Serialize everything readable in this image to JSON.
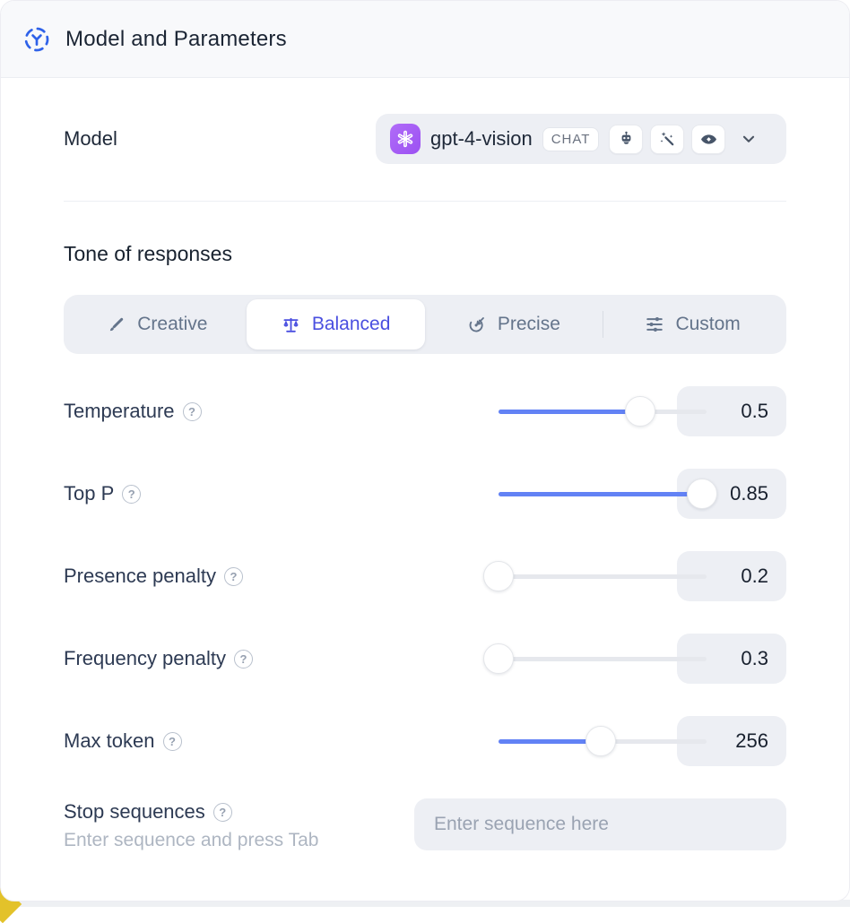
{
  "header": {
    "title": "Model and Parameters"
  },
  "model": {
    "label": "Model",
    "name": "gpt-4-vision",
    "type_badge": "CHAT",
    "capability_icons": [
      "robot-icon",
      "magic-wand-icon",
      "vision-eye-icon"
    ]
  },
  "tone": {
    "heading": "Tone of responses",
    "tabs": [
      {
        "label": "Creative",
        "icon": "paintbrush-icon",
        "active": false
      },
      {
        "label": "Balanced",
        "icon": "balance-scale-icon",
        "active": true
      },
      {
        "label": "Precise",
        "icon": "target-arrow-icon",
        "active": false
      },
      {
        "label": "Custom",
        "icon": "sliders-icon",
        "active": false
      }
    ]
  },
  "parameters": {
    "rows": [
      {
        "label": "Temperature",
        "value": "0.5",
        "slider_percent": 68
      },
      {
        "label": "Top P",
        "value": "0.85",
        "slider_percent": 98
      },
      {
        "label": "Presence penalty",
        "value": "0.2",
        "slider_percent": 0
      },
      {
        "label": "Frequency penalty",
        "value": "0.3",
        "slider_percent": 0
      },
      {
        "label": "Max token",
        "value": "256",
        "slider_percent": 49
      }
    ],
    "help_glyph": "?"
  },
  "stop_sequences": {
    "label": "Stop sequences",
    "helper": "Enter sequence and press Tab",
    "placeholder": "Enter sequence here"
  },
  "colors": {
    "accent_blue": "#4a4fe0",
    "slider_blue": "#6282f5",
    "icon_blue": "#2f62e9",
    "logo_purple": "#a35ef5",
    "corner_yellow": "#e3c22a"
  }
}
